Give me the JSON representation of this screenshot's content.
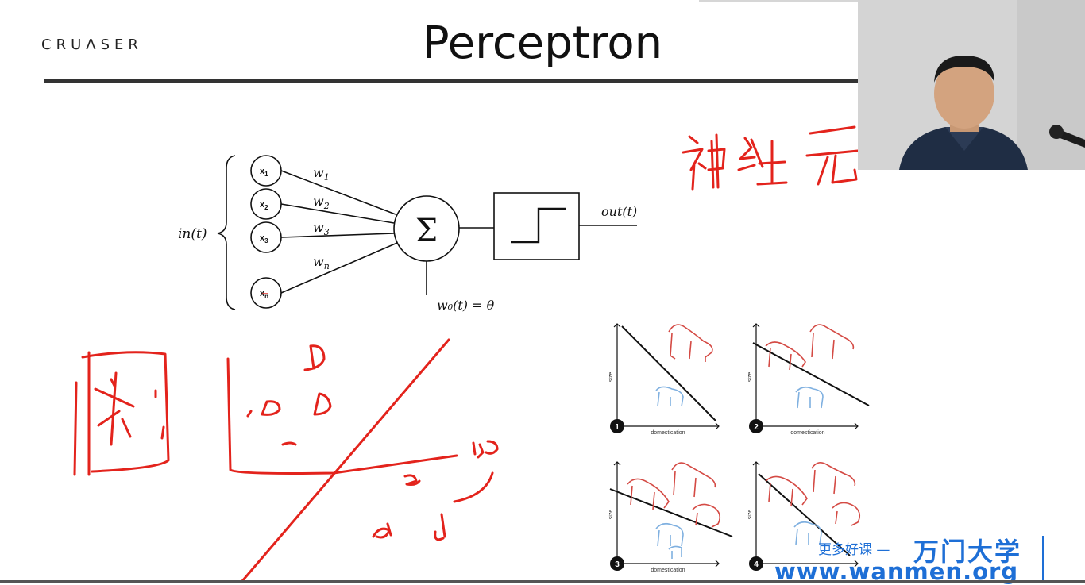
{
  "slide": {
    "logo": "CRUɅSER",
    "title": "Perceptron"
  },
  "perceptron": {
    "inputs_label": "in(t)",
    "inputs": [
      {
        "label": "x",
        "sub": "1"
      },
      {
        "label": "x",
        "sub": "2"
      },
      {
        "label": "x",
        "sub": "3"
      },
      {
        "label": "x",
        "sub": "n"
      }
    ],
    "weights": [
      {
        "label": "w",
        "sub": "1"
      },
      {
        "label": "w",
        "sub": "2"
      },
      {
        "label": "w",
        "sub": "3"
      },
      {
        "label": "w",
        "sub": "n"
      }
    ],
    "sum_symbol": "Σ",
    "bias_label": "w₀(t) = θ",
    "output_label": "out(t)"
  },
  "annotations": {
    "handwritten_cn": "神经元",
    "handwritten_box": "求"
  },
  "panels": [
    {
      "number": "1",
      "xlabel": "domestication",
      "ylabel": "size"
    },
    {
      "number": "2",
      "xlabel": "domestication",
      "ylabel": "size"
    },
    {
      "number": "3",
      "xlabel": "domestication",
      "ylabel": "size"
    },
    {
      "number": "4",
      "xlabel": "domestication",
      "ylabel": "size"
    }
  ],
  "watermark": {
    "line1": "更多好课 —",
    "brand": "万门大学",
    "url": "www.wanmen.org"
  },
  "colors": {
    "ink_red": "#e3231c",
    "dog_red": "#d44a44",
    "cat_blue": "#7fb0e0",
    "watermark_blue": "#1e6fd6"
  }
}
